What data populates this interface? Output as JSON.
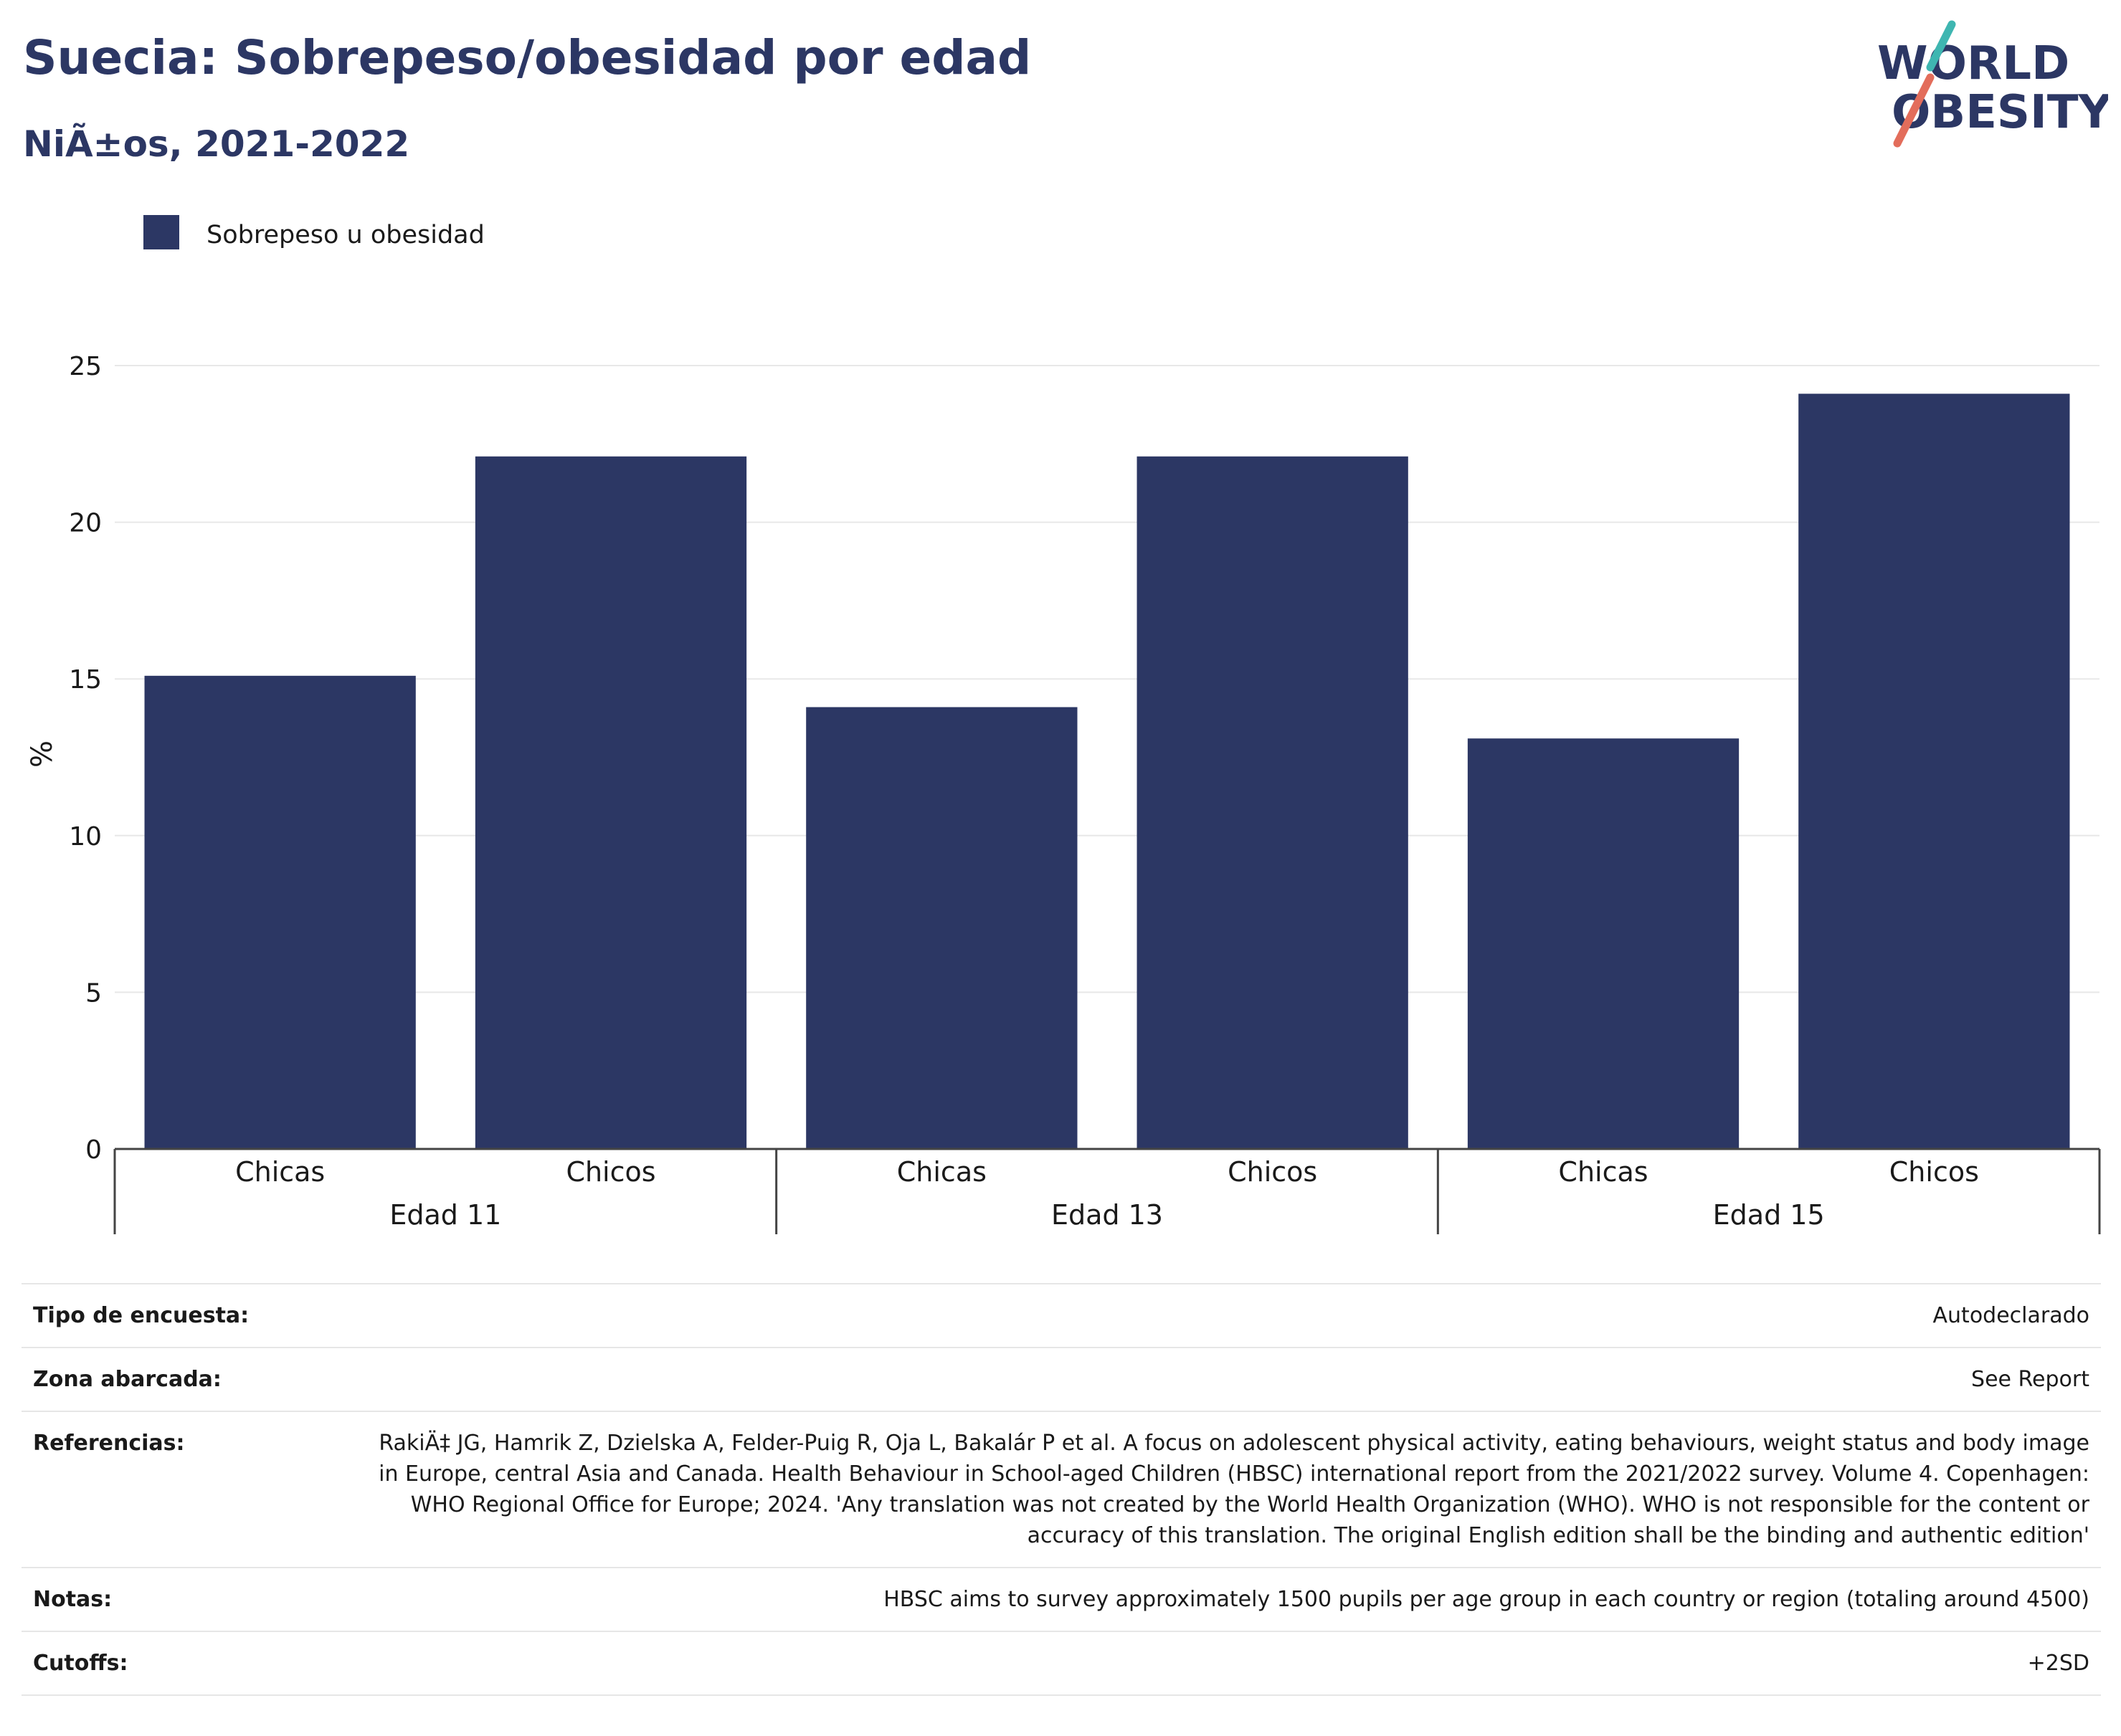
{
  "header": {
    "title": "Suecia: Sobrepeso/obesidad por edad",
    "subtitle": "NiÃ±os, 2021-2022"
  },
  "logo": {
    "line1": "WORLD",
    "line2": "OBESITY",
    "slash_colors": [
      "#3fb6b1",
      "#e36d5b"
    ],
    "text_color": "#2c3764"
  },
  "chart_data": {
    "type": "bar",
    "categories": [
      {
        "group": "Edad 11",
        "label": "Chicas"
      },
      {
        "group": "Edad 11",
        "label": "Chicos"
      },
      {
        "group": "Edad 13",
        "label": "Chicas"
      },
      {
        "group": "Edad 13",
        "label": "Chicos"
      },
      {
        "group": "Edad 15",
        "label": "Chicas"
      },
      {
        "group": "Edad 15",
        "label": "Chicos"
      }
    ],
    "groups": [
      "Edad 11",
      "Edad 13",
      "Edad 15"
    ],
    "series": [
      {
        "name": "Sobrepeso u obesidad",
        "color": "#2c3764",
        "values": [
          15.1,
          22.1,
          14.1,
          22.1,
          13.1,
          24.1
        ]
      }
    ],
    "ylabel": "%",
    "xlabel": "",
    "ylim": [
      0,
      25
    ],
    "yticks": [
      0,
      5,
      10,
      15,
      20,
      25
    ],
    "grid": true,
    "legend_position": "top-left"
  },
  "info": [
    {
      "label": "Tipo de encuesta:",
      "value": "Autodeclarado"
    },
    {
      "label": "Zona abarcada:",
      "value": "See Report"
    },
    {
      "label": "Referencias:",
      "value": "RakiÄ‡ JG, Hamrik Z, Dzielska A, Felder-Puig R, Oja L, Bakalár P et al. A focus on adolescent physical activity, eating behaviours, weight status and body image in Europe, central Asia and Canada. Health Behaviour in School-aged Children (HBSC) international report from the 2021/2022 survey. Volume 4. Copenhagen: WHO Regional Office for Europe; 2024. 'Any translation was not created by the World Health Organization (WHO). WHO is not responsible for the content or accuracy of this translation. The original English edition shall be the binding and authentic edition'"
    },
    {
      "label": "Notas:",
      "value": "HBSC aims to survey approximately 1500 pupils per age group in each country or region (totaling around 4500)"
    },
    {
      "label": "Cutoffs:",
      "value": "+2SD"
    }
  ]
}
